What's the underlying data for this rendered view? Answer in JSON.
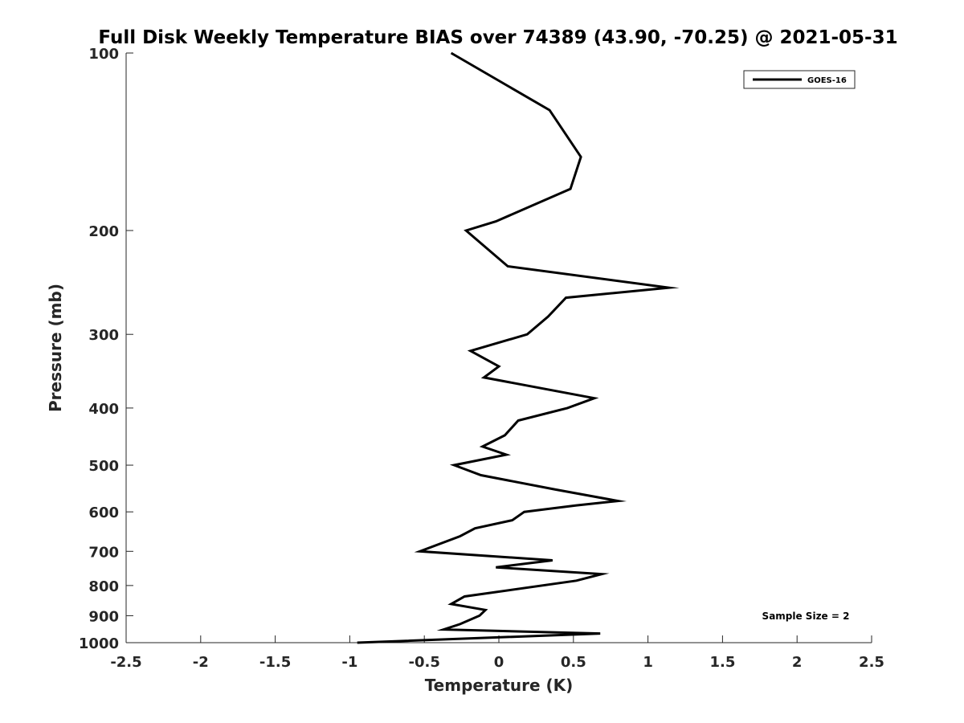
{
  "chart_data": {
    "type": "line",
    "title": "Full Disk Weekly Temperature BIAS over 74389 (43.90, -70.25) @ 2021-05-31",
    "xlabel": "Temperature (K)",
    "ylabel": "Pressure (mb)",
    "xlim": [
      -2.5,
      2.5
    ],
    "ylim": [
      100,
      1000
    ],
    "y_scale": "log",
    "y_reversed": true,
    "grid": false,
    "x_ticks": [
      -2.5,
      -2,
      -1.5,
      -1,
      -0.5,
      0,
      0.5,
      1,
      1.5,
      2,
      2.5
    ],
    "x_tick_labels": [
      "-2.5",
      "-2",
      "-1.5",
      "-1",
      "-0.5",
      "0",
      "0.5",
      "1",
      "1.5",
      "2",
      "2.5"
    ],
    "y_ticks": [
      100,
      200,
      300,
      400,
      500,
      600,
      700,
      800,
      900,
      1000
    ],
    "y_tick_labels": [
      "100",
      "200",
      "300",
      "400",
      "500",
      "600",
      "700",
      "800",
      "900",
      "1000"
    ],
    "legend": {
      "placement": "top-right",
      "entries": [
        "GOES-16"
      ]
    },
    "annotation": "Sample Size = 2",
    "line_color": "#000000",
    "series": [
      {
        "name": "GOES-16",
        "points": [
          {
            "x": -0.32,
            "y": 100
          },
          {
            "x": 0.34,
            "y": 125
          },
          {
            "x": 0.55,
            "y": 150
          },
          {
            "x": 0.48,
            "y": 170
          },
          {
            "x": -0.02,
            "y": 193
          },
          {
            "x": -0.22,
            "y": 200
          },
          {
            "x": 0.06,
            "y": 230
          },
          {
            "x": 1.14,
            "y": 250
          },
          {
            "x": 0.45,
            "y": 260
          },
          {
            "x": 0.33,
            "y": 280
          },
          {
            "x": 0.19,
            "y": 300
          },
          {
            "x": -0.19,
            "y": 320
          },
          {
            "x": 0.0,
            "y": 340
          },
          {
            "x": -0.1,
            "y": 355
          },
          {
            "x": 0.64,
            "y": 385
          },
          {
            "x": 0.46,
            "y": 400
          },
          {
            "x": 0.13,
            "y": 420
          },
          {
            "x": 0.04,
            "y": 445
          },
          {
            "x": -0.11,
            "y": 465
          },
          {
            "x": 0.05,
            "y": 480
          },
          {
            "x": -0.3,
            "y": 500
          },
          {
            "x": -0.12,
            "y": 520
          },
          {
            "x": 0.38,
            "y": 550
          },
          {
            "x": 0.8,
            "y": 575
          },
          {
            "x": 0.52,
            "y": 585
          },
          {
            "x": 0.17,
            "y": 600
          },
          {
            "x": 0.09,
            "y": 620
          },
          {
            "x": -0.16,
            "y": 640
          },
          {
            "x": -0.26,
            "y": 660
          },
          {
            "x": -0.53,
            "y": 700
          },
          {
            "x": 0.36,
            "y": 725
          },
          {
            "x": -0.02,
            "y": 745
          },
          {
            "x": 0.69,
            "y": 765
          },
          {
            "x": 0.52,
            "y": 785
          },
          {
            "x": -0.23,
            "y": 835
          },
          {
            "x": -0.32,
            "y": 860
          },
          {
            "x": -0.09,
            "y": 880
          },
          {
            "x": -0.13,
            "y": 900
          },
          {
            "x": -0.26,
            "y": 930
          },
          {
            "x": -0.37,
            "y": 950
          },
          {
            "x": 0.68,
            "y": 965
          },
          {
            "x": -0.95,
            "y": 1000
          }
        ]
      }
    ]
  }
}
